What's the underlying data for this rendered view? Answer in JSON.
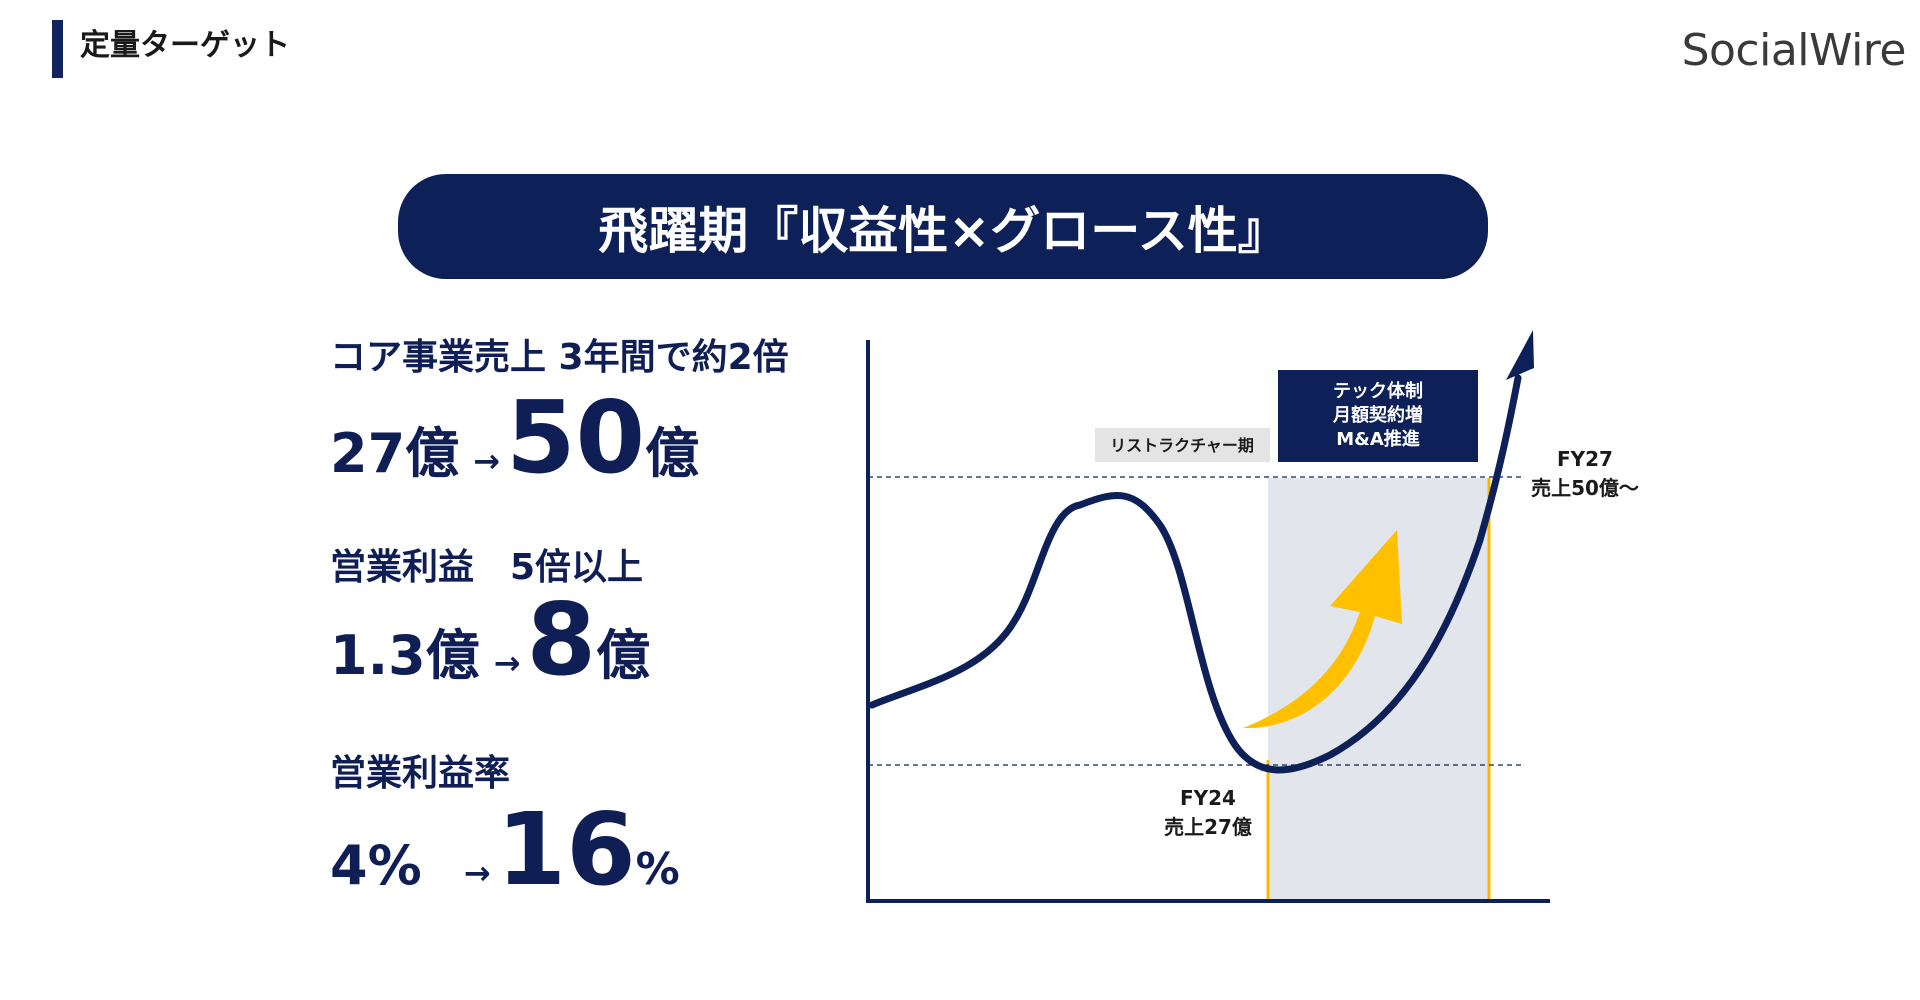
{
  "header": {
    "title": "定量ターゲット",
    "logo": "SocialWire"
  },
  "banner": {
    "text": "飛躍期『収益性×グロース性』"
  },
  "metrics": [
    {
      "label": "コア事業売上  3年間で約2倍",
      "from": "27億",
      "arrow": "→",
      "to_value": "50",
      "to_unit": "億"
    },
    {
      "label": "営業利益　5倍以上",
      "from": "1.3億",
      "arrow": "→",
      "to_value": "8",
      "to_unit": "億"
    },
    {
      "label": "営業利益率",
      "from": "4%",
      "arrow": "→",
      "to_value": "16",
      "to_unit": "%"
    }
  ],
  "chart": {
    "restructure_label": "リストラクチャー期",
    "phase_box": {
      "line1": "テック体制",
      "line2": "月額契約増",
      "line3": "M&A推進"
    },
    "fy24": {
      "year": "FY24",
      "sales": "売上27億"
    },
    "fy27": {
      "year": "FY27",
      "sales": "売上50億～"
    },
    "colors": {
      "navy": "#0d2058",
      "highlight_band": "#e2e5ec",
      "gold_line": "#f7b800",
      "growth_arrow": "#ffc000",
      "restructure_bg": "#e4e4e4"
    }
  }
}
